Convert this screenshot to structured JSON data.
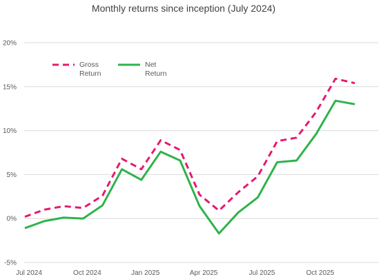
{
  "chart_data": {
    "type": "line",
    "title": "Monthly returns since inception (July 2024)",
    "xlabel": "",
    "ylabel": "",
    "x": [
      "Jul 2024",
      "Aug 2024",
      "Sep 2024",
      "Oct 2024",
      "Nov 2024",
      "Dec 2024",
      "Jan 2025",
      "Feb 2025",
      "Mar 2025",
      "Apr 2025",
      "May 2025",
      "Jun 2025",
      "Jul 2025",
      "Aug 2025",
      "Sep 2025",
      "Oct 2025",
      "Nov 2025",
      "Dec 2025"
    ],
    "x_tick_labels": [
      "Jul 2024",
      "Oct 2024",
      "Jan 2025",
      "Apr 2025",
      "Jul 2025",
      "Oct 2025"
    ],
    "y_ticks": [
      -5,
      0,
      5,
      10,
      15,
      20
    ],
    "y_tick_labels": [
      "-5%",
      "0%",
      "5%",
      "10%",
      "15%",
      "20%"
    ],
    "ylim": [
      -5,
      20
    ],
    "grid": true,
    "legend_position": "top-left",
    "series": [
      {
        "name": "Gross Return",
        "name_lines": [
          "Gross",
          "Return"
        ],
        "color": "#e6196e",
        "dash": true,
        "values": [
          0.2,
          1.0,
          1.4,
          1.2,
          2.6,
          6.8,
          5.6,
          8.9,
          7.8,
          2.7,
          0.9,
          3.0,
          4.8,
          8.8,
          9.2,
          12.1,
          15.9,
          15.4
        ]
      },
      {
        "name": "Net Return",
        "name_lines": [
          "Net",
          "Return"
        ],
        "color": "#2db34a",
        "dash": false,
        "values": [
          -1.1,
          -0.3,
          0.1,
          0.0,
          1.5,
          5.6,
          4.4,
          7.6,
          6.6,
          1.4,
          -1.7,
          0.7,
          2.4,
          6.4,
          6.6,
          9.6,
          13.4,
          13.0
        ]
      }
    ]
  }
}
